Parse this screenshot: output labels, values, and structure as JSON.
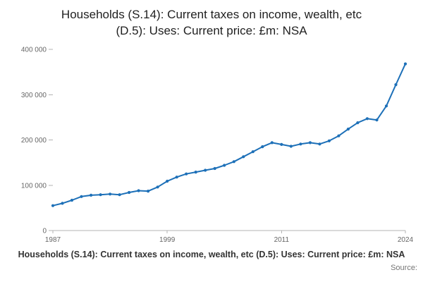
{
  "title": {
    "line1": "Households (S.14): Current taxes on income, wealth, etc",
    "line2": "(D.5): Uses: Current price: £m: NSA"
  },
  "footer": {
    "caption": "Households (S.14): Current taxes on income, wealth, etc (D.5): Uses: Current price: £m: NSA",
    "source": "Source:"
  },
  "colors": {
    "line": "#1d70b8",
    "axis": "#b3b3b3",
    "tick_text": "#666666"
  },
  "chart_data": {
    "type": "line",
    "title": "Households (S.14): Current taxes on income, wealth, etc (D.5): Uses: Current price: £m: NSA",
    "xlabel": "",
    "ylabel": "",
    "grid": false,
    "legend": "none",
    "marker": "circle",
    "line_color": "#1d70b8",
    "ylim": [
      0,
      400000
    ],
    "yticks": [
      0,
      100000,
      200000,
      300000,
      400000
    ],
    "ytick_labels": [
      "0",
      "100 000",
      "200 000",
      "300 000",
      "400 000"
    ],
    "xticks": [
      1987,
      1999,
      2011,
      2024
    ],
    "x": [
      1987,
      1988,
      1989,
      1990,
      1991,
      1992,
      1993,
      1994,
      1995,
      1996,
      1997,
      1998,
      1999,
      2000,
      2001,
      2002,
      2003,
      2004,
      2005,
      2006,
      2007,
      2008,
      2009,
      2010,
      2011,
      2012,
      2013,
      2014,
      2015,
      2016,
      2017,
      2018,
      2019,
      2020,
      2021,
      2022,
      2023,
      2024
    ],
    "values": [
      55000,
      60000,
      67000,
      75000,
      78000,
      79000,
      80500,
      79000,
      84000,
      88000,
      87000,
      96000,
      109000,
      118000,
      125000,
      129000,
      133000,
      137000,
      144000,
      152000,
      163000,
      174000,
      185000,
      194000,
      190000,
      186000,
      191000,
      194000,
      191000,
      198000,
      209000,
      224000,
      238000,
      247000,
      244000,
      275000,
      322000,
      368000
    ]
  }
}
